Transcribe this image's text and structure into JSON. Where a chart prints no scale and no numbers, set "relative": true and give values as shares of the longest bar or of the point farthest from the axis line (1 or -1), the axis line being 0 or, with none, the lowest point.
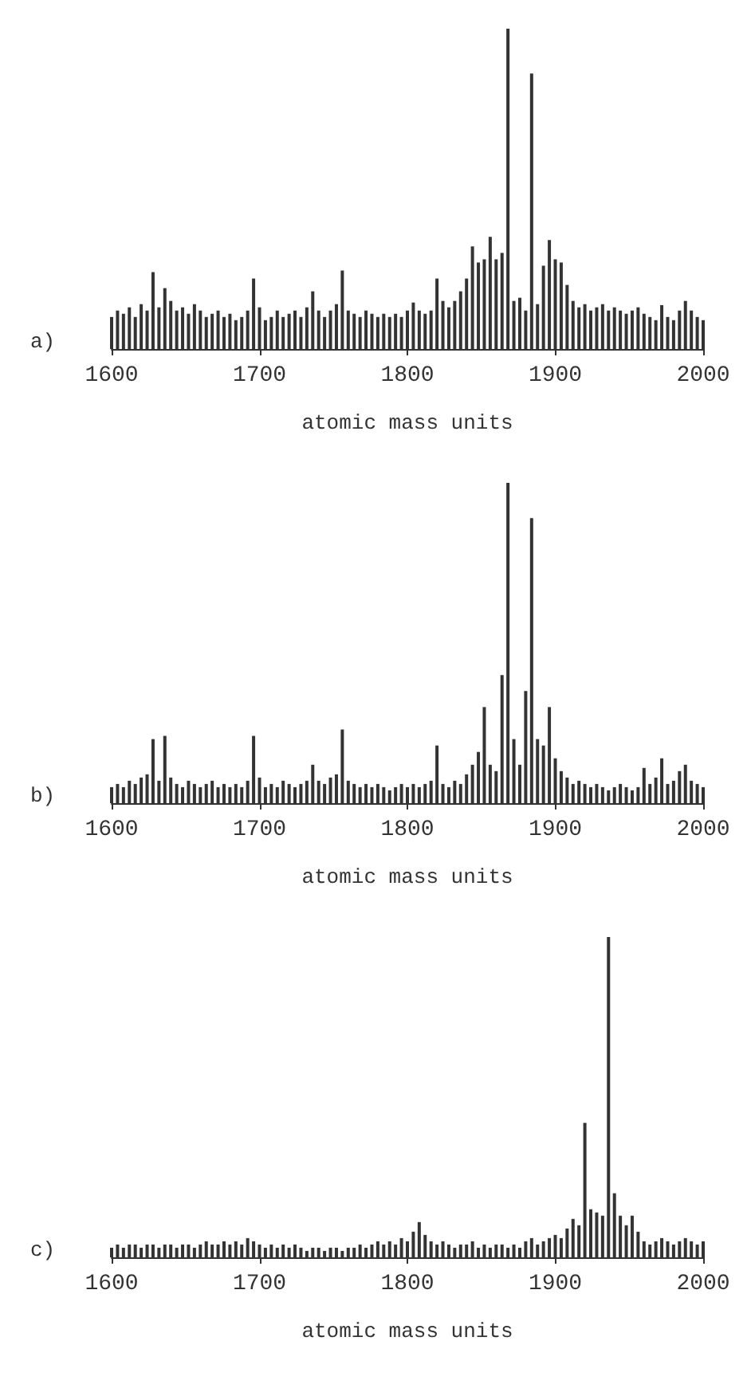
{
  "chart_data": [
    {
      "type": "bar",
      "title": "a)",
      "xlabel": "atomic mass units",
      "relative": true,
      "xlim": [
        1600,
        2000
      ],
      "xticks": [
        1600,
        1700,
        1800,
        1900,
        2000
      ],
      "color": "#333333",
      "x": [
        1600,
        1604,
        1608,
        1612,
        1616,
        1620,
        1624,
        1628,
        1632,
        1636,
        1640,
        1644,
        1648,
        1652,
        1656,
        1660,
        1664,
        1668,
        1672,
        1676,
        1680,
        1684,
        1688,
        1692,
        1696,
        1700,
        1704,
        1708,
        1712,
        1716,
        1720,
        1724,
        1728,
        1732,
        1736,
        1740,
        1744,
        1748,
        1752,
        1756,
        1760,
        1764,
        1768,
        1772,
        1776,
        1780,
        1784,
        1788,
        1792,
        1796,
        1800,
        1804,
        1808,
        1812,
        1816,
        1820,
        1824,
        1828,
        1832,
        1836,
        1840,
        1844,
        1848,
        1852,
        1856,
        1860,
        1864,
        1868,
        1872,
        1876,
        1880,
        1884,
        1888,
        1892,
        1896,
        1900,
        1904,
        1908,
        1912,
        1916,
        1920,
        1924,
        1928,
        1932,
        1936,
        1940,
        1944,
        1948,
        1952,
        1956,
        1960,
        1964,
        1968,
        1972,
        1976,
        1980,
        1984,
        1988,
        1992,
        1996,
        2000
      ],
      "values": [
        0.1,
        0.12,
        0.11,
        0.13,
        0.1,
        0.14,
        0.12,
        0.24,
        0.13,
        0.19,
        0.15,
        0.12,
        0.13,
        0.11,
        0.14,
        0.12,
        0.1,
        0.11,
        0.12,
        0.1,
        0.11,
        0.09,
        0.1,
        0.12,
        0.22,
        0.13,
        0.09,
        0.1,
        0.12,
        0.1,
        0.11,
        0.12,
        0.1,
        0.13,
        0.18,
        0.12,
        0.1,
        0.12,
        0.14,
        0.245,
        0.12,
        0.11,
        0.1,
        0.12,
        0.11,
        0.1,
        0.11,
        0.1,
        0.11,
        0.1,
        0.12,
        0.145,
        0.12,
        0.11,
        0.12,
        0.22,
        0.15,
        0.13,
        0.15,
        0.18,
        0.22,
        0.32,
        0.27,
        0.28,
        0.35,
        0.28,
        0.3,
        1.0,
        0.15,
        0.16,
        0.12,
        0.86,
        0.14,
        0.26,
        0.34,
        0.28,
        0.27,
        0.2,
        0.15,
        0.13,
        0.14,
        0.12,
        0.13,
        0.14,
        0.12,
        0.13,
        0.12,
        0.11,
        0.12,
        0.13,
        0.11,
        0.1,
        0.09,
        0.137,
        0.1,
        0.09,
        0.12,
        0.15,
        0.12,
        0.1,
        0.09
      ]
    },
    {
      "type": "bar",
      "title": "b)",
      "xlabel": "atomic mass units",
      "relative": true,
      "xlim": [
        1600,
        2000
      ],
      "xticks": [
        1600,
        1700,
        1800,
        1900,
        2000
      ],
      "color": "#333333",
      "x": [
        1600,
        1604,
        1608,
        1612,
        1616,
        1620,
        1624,
        1628,
        1632,
        1636,
        1640,
        1644,
        1648,
        1652,
        1656,
        1660,
        1664,
        1668,
        1672,
        1676,
        1680,
        1684,
        1688,
        1692,
        1696,
        1700,
        1704,
        1708,
        1712,
        1716,
        1720,
        1724,
        1728,
        1732,
        1736,
        1740,
        1744,
        1748,
        1752,
        1756,
        1760,
        1764,
        1768,
        1772,
        1776,
        1780,
        1784,
        1788,
        1792,
        1796,
        1800,
        1804,
        1808,
        1812,
        1816,
        1820,
        1824,
        1828,
        1832,
        1836,
        1840,
        1844,
        1848,
        1852,
        1856,
        1860,
        1864,
        1868,
        1872,
        1876,
        1880,
        1884,
        1888,
        1892,
        1896,
        1900,
        1904,
        1908,
        1912,
        1916,
        1920,
        1924,
        1928,
        1932,
        1936,
        1940,
        1944,
        1948,
        1952,
        1956,
        1960,
        1964,
        1968,
        1972,
        1976,
        1980,
        1984,
        1988,
        1992,
        1996,
        2000
      ],
      "values": [
        0.05,
        0.06,
        0.05,
        0.07,
        0.06,
        0.08,
        0.09,
        0.2,
        0.07,
        0.21,
        0.08,
        0.06,
        0.05,
        0.07,
        0.06,
        0.05,
        0.06,
        0.07,
        0.05,
        0.06,
        0.05,
        0.06,
        0.05,
        0.07,
        0.21,
        0.08,
        0.05,
        0.06,
        0.05,
        0.07,
        0.06,
        0.05,
        0.06,
        0.07,
        0.12,
        0.07,
        0.06,
        0.08,
        0.09,
        0.23,
        0.07,
        0.06,
        0.05,
        0.06,
        0.05,
        0.06,
        0.05,
        0.04,
        0.05,
        0.06,
        0.05,
        0.06,
        0.05,
        0.06,
        0.07,
        0.18,
        0.06,
        0.05,
        0.07,
        0.06,
        0.09,
        0.12,
        0.16,
        0.3,
        0.12,
        0.1,
        0.4,
        1.0,
        0.2,
        0.12,
        0.35,
        0.89,
        0.2,
        0.18,
        0.3,
        0.14,
        0.1,
        0.08,
        0.06,
        0.07,
        0.06,
        0.05,
        0.06,
        0.05,
        0.04,
        0.05,
        0.06,
        0.05,
        0.04,
        0.05,
        0.11,
        0.06,
        0.08,
        0.14,
        0.06,
        0.07,
        0.1,
        0.12,
        0.07,
        0.06,
        0.05
      ]
    },
    {
      "type": "bar",
      "title": "c)",
      "xlabel": "atomic mass units",
      "relative": true,
      "xlim": [
        1600,
        2000
      ],
      "xticks": [
        1600,
        1700,
        1800,
        1900,
        2000
      ],
      "color": "#333333",
      "x": [
        1600,
        1604,
        1608,
        1612,
        1616,
        1620,
        1624,
        1628,
        1632,
        1636,
        1640,
        1644,
        1648,
        1652,
        1656,
        1660,
        1664,
        1668,
        1672,
        1676,
        1680,
        1684,
        1688,
        1692,
        1696,
        1700,
        1704,
        1708,
        1712,
        1716,
        1720,
        1724,
        1728,
        1732,
        1736,
        1740,
        1744,
        1748,
        1752,
        1756,
        1760,
        1764,
        1768,
        1772,
        1776,
        1780,
        1784,
        1788,
        1792,
        1796,
        1800,
        1804,
        1808,
        1812,
        1816,
        1820,
        1824,
        1828,
        1832,
        1836,
        1840,
        1844,
        1848,
        1852,
        1856,
        1860,
        1864,
        1868,
        1872,
        1876,
        1880,
        1884,
        1888,
        1892,
        1896,
        1900,
        1904,
        1908,
        1912,
        1916,
        1920,
        1924,
        1928,
        1932,
        1936,
        1940,
        1944,
        1948,
        1952,
        1956,
        1960,
        1964,
        1968,
        1972,
        1976,
        1980,
        1984,
        1988,
        1992,
        1996,
        2000
      ],
      "values": [
        0.03,
        0.04,
        0.03,
        0.04,
        0.04,
        0.03,
        0.04,
        0.04,
        0.03,
        0.04,
        0.04,
        0.03,
        0.04,
        0.04,
        0.03,
        0.04,
        0.05,
        0.04,
        0.04,
        0.05,
        0.04,
        0.05,
        0.04,
        0.06,
        0.05,
        0.04,
        0.03,
        0.04,
        0.03,
        0.04,
        0.03,
        0.04,
        0.03,
        0.02,
        0.03,
        0.03,
        0.02,
        0.03,
        0.03,
        0.02,
        0.03,
        0.03,
        0.04,
        0.03,
        0.04,
        0.05,
        0.04,
        0.05,
        0.04,
        0.06,
        0.05,
        0.08,
        0.11,
        0.07,
        0.05,
        0.04,
        0.05,
        0.04,
        0.03,
        0.04,
        0.04,
        0.05,
        0.03,
        0.04,
        0.03,
        0.04,
        0.04,
        0.03,
        0.04,
        0.03,
        0.05,
        0.06,
        0.04,
        0.05,
        0.06,
        0.07,
        0.06,
        0.09,
        0.12,
        0.1,
        0.42,
        0.15,
        0.14,
        0.13,
        1.0,
        0.2,
        0.13,
        0.1,
        0.13,
        0.08,
        0.05,
        0.04,
        0.05,
        0.06,
        0.05,
        0.04,
        0.05,
        0.06,
        0.05,
        0.04,
        0.05
      ]
    }
  ]
}
